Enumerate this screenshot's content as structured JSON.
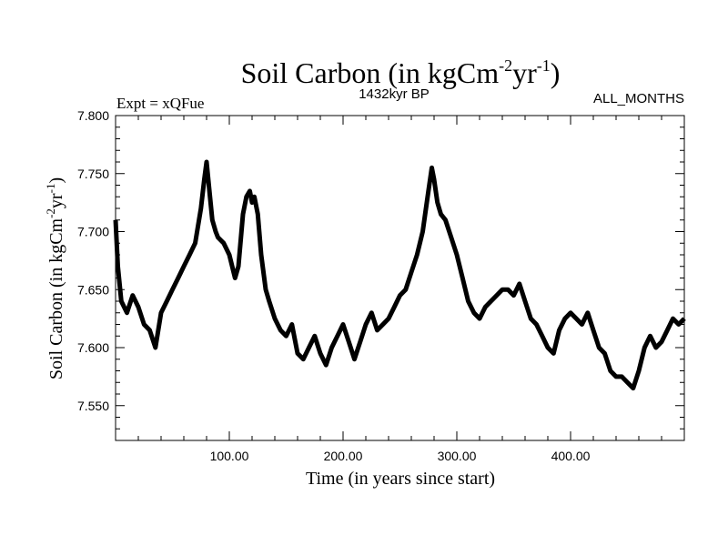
{
  "chart_data": {
    "type": "line",
    "title": {
      "main": "Soil Carbon (in kgCm",
      "sup1": "-2",
      "mid": "yr",
      "sup2": "-1",
      "end": ")"
    },
    "subtitle": "1432kyr BP",
    "experiment_label": "Expt = xQFue",
    "period_label": "ALL_MONTHS",
    "xlabel": "Time (in years since start)",
    "ylabel": {
      "main": "Soil Carbon (in kgCm",
      "sup1": "-2",
      "mid": "yr",
      "sup2": "-1",
      "end": ")"
    },
    "xlim": [
      0,
      500
    ],
    "ylim": [
      7.52,
      7.8
    ],
    "x_ticks": [
      100,
      200,
      300,
      400
    ],
    "x_tick_labels": [
      "100.00",
      "200.00",
      "300.00",
      "400.00"
    ],
    "y_ticks": [
      7.55,
      7.6,
      7.65,
      7.7,
      7.75,
      7.8
    ],
    "y_tick_labels": [
      "7.550",
      "7.600",
      "7.650",
      "7.700",
      "7.750",
      "7.800"
    ],
    "grid": false,
    "line_color": "#000000",
    "series": [
      {
        "name": "Soil Carbon",
        "x": [
          0,
          2,
          5,
          10,
          15,
          20,
          25,
          30,
          35,
          40,
          45,
          50,
          55,
          60,
          65,
          70,
          75,
          78,
          80,
          82,
          85,
          88,
          90,
          95,
          100,
          105,
          108,
          112,
          115,
          118,
          120,
          122,
          125,
          128,
          132,
          135,
          140,
          145,
          150,
          155,
          160,
          165,
          170,
          175,
          180,
          185,
          190,
          195,
          200,
          205,
          210,
          215,
          220,
          225,
          230,
          235,
          240,
          245,
          250,
          255,
          260,
          265,
          270,
          275,
          278,
          280,
          283,
          286,
          290,
          295,
          300,
          305,
          310,
          315,
          320,
          325,
          330,
          335,
          340,
          345,
          350,
          355,
          360,
          365,
          370,
          375,
          380,
          385,
          390,
          395,
          400,
          405,
          410,
          415,
          420,
          425,
          430,
          435,
          440,
          445,
          450,
          455,
          460,
          465,
          470,
          475,
          480,
          485,
          490,
          495,
          500
        ],
        "values": [
          7.71,
          7.67,
          7.64,
          7.63,
          7.645,
          7.635,
          7.62,
          7.615,
          7.6,
          7.63,
          7.64,
          7.65,
          7.66,
          7.67,
          7.68,
          7.69,
          7.72,
          7.745,
          7.76,
          7.74,
          7.71,
          7.7,
          7.695,
          7.69,
          7.68,
          7.66,
          7.67,
          7.715,
          7.73,
          7.735,
          7.725,
          7.73,
          7.715,
          7.68,
          7.65,
          7.64,
          7.625,
          7.615,
          7.61,
          7.62,
          7.595,
          7.59,
          7.6,
          7.61,
          7.595,
          7.585,
          7.6,
          7.61,
          7.62,
          7.605,
          7.59,
          7.605,
          7.62,
          7.63,
          7.615,
          7.62,
          7.625,
          7.635,
          7.645,
          7.65,
          7.665,
          7.68,
          7.7,
          7.735,
          7.755,
          7.745,
          7.725,
          7.715,
          7.71,
          7.695,
          7.68,
          7.66,
          7.64,
          7.63,
          7.625,
          7.635,
          7.64,
          7.645,
          7.65,
          7.65,
          7.645,
          7.655,
          7.64,
          7.625,
          7.62,
          7.61,
          7.6,
          7.595,
          7.615,
          7.625,
          7.63,
          7.625,
          7.62,
          7.63,
          7.615,
          7.6,
          7.595,
          7.58,
          7.575,
          7.575,
          7.57,
          7.565,
          7.58,
          7.6,
          7.61,
          7.6,
          7.605,
          7.615,
          7.625,
          7.62,
          7.625
        ]
      }
    ]
  }
}
